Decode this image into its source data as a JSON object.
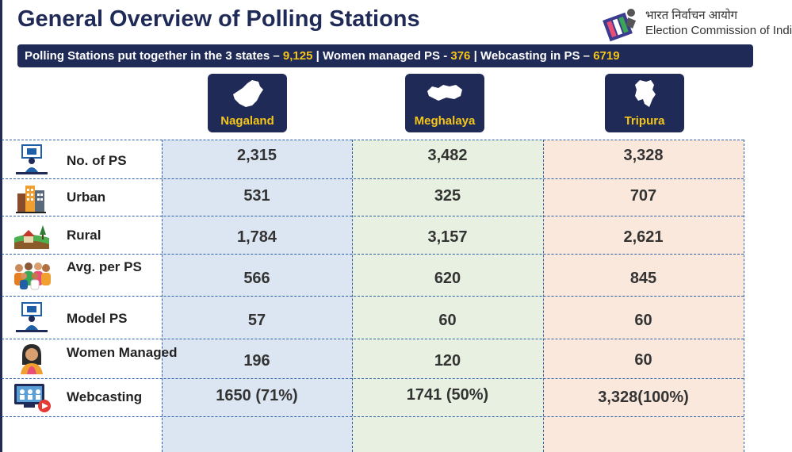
{
  "title": "General Overview of Polling Stations",
  "eci": {
    "hindi": "भारत निर्वाचन आयोग",
    "english": "Election Commission of India"
  },
  "banner": {
    "part1": "Polling Stations put together in the 3 states – ",
    "v1": "9,125",
    "part2": " | Women managed  PS - ",
    "v2": "376",
    "part3": " | Webcasting in PS – ",
    "v3": "6719"
  },
  "states": [
    "Nagaland",
    "Meghalaya",
    "Tripura"
  ],
  "rows": [
    {
      "label": "No. of PS",
      "icon": "polling-booth-icon",
      "values": [
        "2,315",
        "3,482",
        "3,328"
      ]
    },
    {
      "label": "Urban",
      "icon": "city-buildings-icon",
      "values": [
        "531",
        "325",
        "707"
      ]
    },
    {
      "label": "Rural",
      "icon": "rural-landscape-icon",
      "values": [
        "1,784",
        "3,157",
        "2,621"
      ]
    },
    {
      "label": "Avg. per PS",
      "icon": "voters-group-icon",
      "values": [
        "566",
        "620",
        "845"
      ]
    },
    {
      "label": "Model PS",
      "icon": "model-booth-icon",
      "values": [
        "57",
        "60",
        "60"
      ]
    },
    {
      "label": "Women Managed",
      "icon": "woman-icon",
      "values": [
        "196",
        "120",
        "60"
      ]
    },
    {
      "label": "Webcasting",
      "icon": "webcast-monitor-icon",
      "values": [
        "1650  (71%)",
        "1741  (50%)",
        "3,328(100%)"
      ]
    }
  ],
  "colors": {
    "navy": "#1f2a57",
    "accent": "#f5c518",
    "nagaland_bg": "#dce6f3",
    "meghalaya_bg": "#e8f1e1",
    "tripura_bg": "#fbe8dd"
  }
}
